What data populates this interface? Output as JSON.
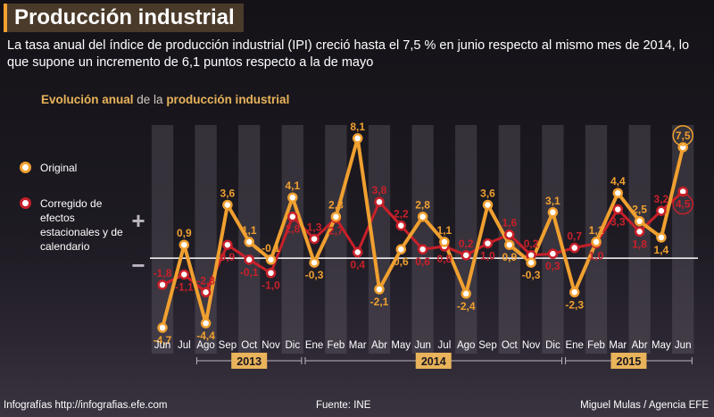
{
  "header": {
    "title": "Producción industrial",
    "subtitle": "La tasa anual del índice de producción industrial (IPI) creció hasta el 7,5 % en junio respecto al mismo mes de 2014, lo que supone un incremento de 6,1 puntos respecto a la de mayo"
  },
  "chart_title": {
    "part1": "Evolución anual",
    "part2": " de la ",
    "part3": "producción industrial"
  },
  "colors": {
    "original": "#f0a030",
    "corrected": "#c8202a",
    "zero_line": "#ffffff",
    "band": "#6a6470"
  },
  "chart_data": {
    "type": "line",
    "categories": [
      "Jun",
      "Jul",
      "Ago",
      "Sep",
      "Oct",
      "Nov",
      "Dic",
      "Ene",
      "Feb",
      "Mar",
      "Abr",
      "May",
      "Jun",
      "Jul",
      "Ago",
      "Sep",
      "Oct",
      "Nov",
      "Dic",
      "Ene",
      "Feb",
      "Mar",
      "Abr",
      "May",
      "Jun"
    ],
    "years": [
      {
        "label": "2013",
        "start": 2,
        "end": 6
      },
      {
        "label": "2014",
        "start": 7,
        "end": 18
      },
      {
        "label": "2015",
        "start": 19,
        "end": 24
      }
    ],
    "series": [
      {
        "name": "Original",
        "values": [
          -4.7,
          0.9,
          -4.4,
          3.6,
          1.1,
          -0.1,
          4.1,
          -0.3,
          2.8,
          8.1,
          -2.1,
          0.6,
          2.8,
          1.1,
          -2.4,
          3.6,
          0.9,
          -0.3,
          3.1,
          -2.3,
          1.1,
          4.4,
          2.5,
          1.4,
          7.5
        ],
        "labels": [
          "-4,7",
          "0,9",
          "-4,4",
          "3,6",
          "1,1",
          "-0,1",
          "4,1",
          "-0,3",
          "2,8",
          "8,1",
          "-2,1",
          "0,6",
          "2,8",
          "1,1",
          "-2,4",
          "3,6",
          "0,9",
          "-0,3",
          "3,1",
          "-2,3",
          "1,1",
          "4,4",
          "2,5",
          "1,4",
          "7,5"
        ]
      },
      {
        "name": "Corregido de efectos estacionales y de calendario",
        "values": [
          -1.8,
          -1.1,
          -2.3,
          0.9,
          -0.1,
          -1.0,
          2.8,
          1.3,
          2.7,
          0.4,
          3.8,
          2.2,
          0.6,
          0.8,
          0.2,
          1.0,
          1.6,
          0.2,
          0.3,
          0.7,
          1.0,
          3.3,
          1.8,
          3.2,
          4.5
        ],
        "labels": [
          "-1,8",
          "-1,1",
          "-2,3",
          "0,9",
          "-0,1",
          "-1,0",
          "2,8",
          "1,3",
          "2,7",
          "0,4",
          "3,8",
          "2,2",
          "0,6",
          "0,8",
          "0,2",
          "1,0",
          "1,6",
          "0,2",
          "0,3",
          "0,7",
          "1,0",
          "3,3",
          "1,8",
          "3,2",
          "4,5"
        ]
      }
    ],
    "ylim": [
      -5,
      9
    ],
    "legend": "left",
    "grid": false
  },
  "legend": {
    "original": "Original",
    "corrected": "Corregido de efectos estacionales y de calendario"
  },
  "axis_signs": {
    "plus": "+",
    "minus": "−"
  },
  "footer": {
    "left": "Infografías http://infografias.efe.com",
    "source": "Fuente: INE",
    "credit": "Miguel Mulas / Agencia EFE"
  }
}
